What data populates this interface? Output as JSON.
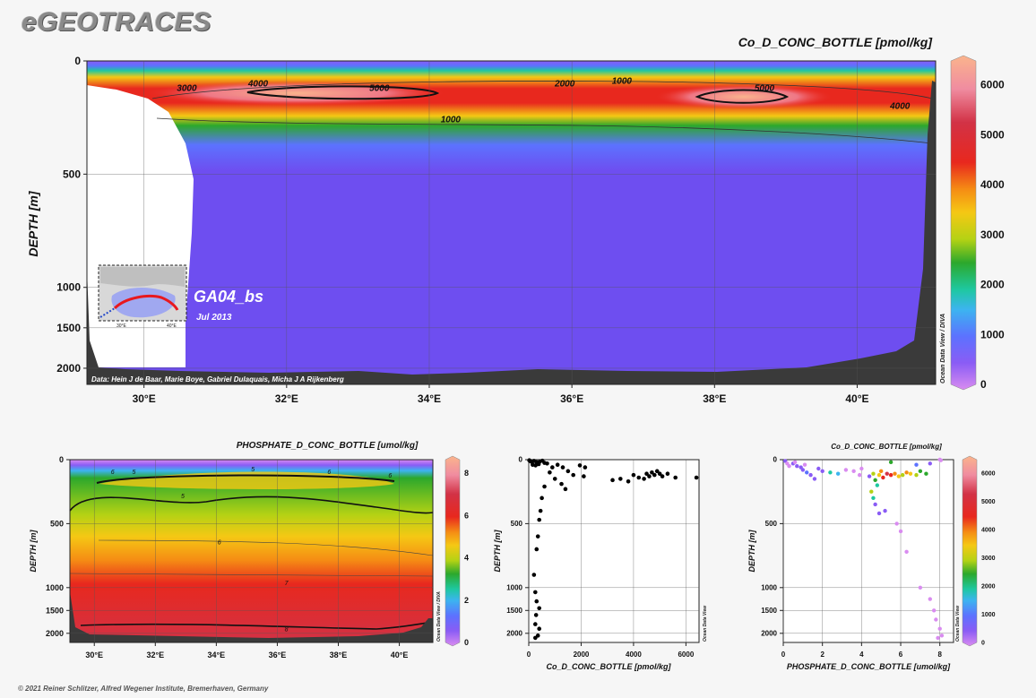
{
  "brand": "eGEOTRACES",
  "footer": "© 2021 Reiner Schlitzer, Alfred Wegener Institute, Bremerhaven, Germany",
  "colors": {
    "scale": [
      "#d98cf0",
      "#8a5cf5",
      "#5c72ff",
      "#3cb4f0",
      "#1ec8a0",
      "#2ca82c",
      "#b4d214",
      "#f5c814",
      "#f58c14",
      "#e8281e",
      "#d23246",
      "#f08ca0",
      "#fab48c"
    ],
    "ocean": "#6e4ef0",
    "bottom": "#3a3a3a"
  },
  "chart_data": [
    {
      "id": "main-section",
      "type": "heatmap",
      "title": "Co_D_CONC_BOTTLE [pmol/kg]",
      "ylabel": "DEPTH [m]",
      "x_ticks": [
        "30°E",
        "32°E",
        "34°E",
        "36°E",
        "38°E",
        "40°E"
      ],
      "x_tick_values": [
        30,
        32,
        34,
        36,
        38,
        40
      ],
      "xlim": [
        29.2,
        41.1
      ],
      "y_ticks": [
        "0",
        "500",
        "1000",
        "1500",
        "2000"
      ],
      "y_tick_values": [
        0,
        500,
        1000,
        1500,
        2000
      ],
      "ylim": [
        0,
        2200
      ],
      "colorbar_ticks": [
        "0",
        "1000",
        "2000",
        "3000",
        "4000",
        "5000",
        "6000"
      ],
      "colorbar_values": [
        0,
        1000,
        2000,
        3000,
        4000,
        5000,
        6000
      ],
      "contour_labels": [
        {
          "text": "3000",
          "x": 30.6,
          "depth": 120
        },
        {
          "text": "4000",
          "x": 31.6,
          "depth": 100
        },
        {
          "text": "5000",
          "x": 33.3,
          "depth": 120
        },
        {
          "text": "2000",
          "x": 35.9,
          "depth": 100
        },
        {
          "text": "1000",
          "x": 36.7,
          "depth": 90
        },
        {
          "text": "5000",
          "x": 38.7,
          "depth": 120
        },
        {
          "text": "4000",
          "x": 40.6,
          "depth": 200
        },
        {
          "text": "1000",
          "x": 34.3,
          "depth": 260
        }
      ],
      "cruise_label": "GA04_bs",
      "cruise_date": "Jul 2013",
      "inset_ticks": [
        "30°E",
        "40°E"
      ],
      "credits": "Data: Hein J de Baar, Marie Boye, Gabriel Dulaquais, Micha J A Rijkenberg",
      "side_label": "Ocean Data View / DIVA",
      "grid": true
    },
    {
      "id": "phosphate-section",
      "type": "heatmap",
      "title": "PHOSPHATE_D_CONC_BOTTLE [umol/kg]",
      "ylabel": "DEPTH [m]",
      "x_ticks": [
        "30°E",
        "32°E",
        "34°E",
        "36°E",
        "38°E",
        "40°E"
      ],
      "x_tick_values": [
        30,
        32,
        34,
        36,
        38,
        40
      ],
      "xlim": [
        29.2,
        41.1
      ],
      "y_ticks": [
        "0",
        "500",
        "1000",
        "1500",
        "2000"
      ],
      "y_tick_values": [
        0,
        500,
        1000,
        1500,
        2000
      ],
      "ylim": [
        0,
        2200
      ],
      "colorbar_ticks": [
        "0",
        "2",
        "4",
        "6",
        "8"
      ],
      "colorbar_values": [
        0,
        2,
        4,
        6,
        8
      ],
      "contour_labels": [
        {
          "text": "6",
          "x": 30.6,
          "depth": 90
        },
        {
          "text": "5",
          "x": 31.3,
          "depth": 90
        },
        {
          "text": "6",
          "x": 37.7,
          "depth": 90
        },
        {
          "text": "6",
          "x": 39.7,
          "depth": 120
        },
        {
          "text": "5",
          "x": 35.2,
          "depth": 70
        },
        {
          "text": "5",
          "x": 32.9,
          "depth": 280
        },
        {
          "text": "6",
          "x": 34.1,
          "depth": 640
        },
        {
          "text": "7",
          "x": 36.3,
          "depth": 960
        },
        {
          "text": "8",
          "x": 36.3,
          "depth": 1900
        }
      ],
      "side_label": "Ocean Data View / DIVA",
      "grid": true
    },
    {
      "id": "co-profile",
      "type": "scatter",
      "xlabel": "Co_D_CONC_BOTTLE [pmol/kg]",
      "ylabel": "DEPTH [m]",
      "x_ticks": [
        "0",
        "2000",
        "4000",
        "6000"
      ],
      "x_tick_values": [
        0,
        2000,
        4000,
        6000
      ],
      "xlim": [
        0,
        6500
      ],
      "y_ticks": [
        "0",
        "500",
        "1000",
        "1500",
        "2000"
      ],
      "y_tick_values": [
        0,
        500,
        1000,
        1500,
        2000
      ],
      "ylim": [
        0,
        2200
      ],
      "side_label": "Ocean Data View",
      "points": [
        [
          20,
          5
        ],
        [
          60,
          12
        ],
        [
          120,
          18
        ],
        [
          200,
          10
        ],
        [
          300,
          20
        ],
        [
          420,
          15
        ],
        [
          520,
          8
        ],
        [
          600,
          25
        ],
        [
          150,
          40
        ],
        [
          260,
          45
        ],
        [
          380,
          35
        ],
        [
          700,
          30
        ],
        [
          900,
          60
        ],
        [
          1100,
          40
        ],
        [
          1300,
          60
        ],
        [
          1500,
          90
        ],
        [
          1700,
          120
        ],
        [
          1950,
          45
        ],
        [
          2100,
          130
        ],
        [
          2150,
          60
        ],
        [
          800,
          100
        ],
        [
          1000,
          150
        ],
        [
          1250,
          190
        ],
        [
          1400,
          230
        ],
        [
          600,
          210
        ],
        [
          500,
          300
        ],
        [
          450,
          400
        ],
        [
          400,
          470
        ],
        [
          350,
          600
        ],
        [
          300,
          700
        ],
        [
          200,
          900
        ],
        [
          250,
          1100
        ],
        [
          300,
          1300
        ],
        [
          400,
          1450
        ],
        [
          280,
          1600
        ],
        [
          250,
          1800
        ],
        [
          400,
          1900
        ],
        [
          350,
          2050
        ],
        [
          250,
          2100
        ],
        [
          3200,
          160
        ],
        [
          3500,
          150
        ],
        [
          3800,
          170
        ],
        [
          4000,
          120
        ],
        [
          4200,
          140
        ],
        [
          4400,
          150
        ],
        [
          4500,
          110
        ],
        [
          4600,
          130
        ],
        [
          4700,
          100
        ],
        [
          4800,
          120
        ],
        [
          4900,
          90
        ],
        [
          5000,
          110
        ],
        [
          5100,
          130
        ],
        [
          5300,
          110
        ],
        [
          5600,
          140
        ],
        [
          6400,
          140
        ]
      ],
      "grid": true
    },
    {
      "id": "co-vs-phosphate",
      "type": "scatter",
      "title": "Co_D_CONC_BOTTLE [pmol/kg]",
      "xlabel": "PHOSPHATE_D_CONC_BOTTLE [umol/kg]",
      "ylabel": "DEPTH [m]",
      "x_ticks": [
        "0",
        "2",
        "4",
        "6",
        "8"
      ],
      "x_tick_values": [
        0,
        2,
        4,
        6,
        8
      ],
      "xlim": [
        0,
        8.7
      ],
      "y_ticks": [
        "0",
        "500",
        "1000",
        "1500",
        "2000"
      ],
      "y_tick_values": [
        0,
        500,
        1000,
        1500,
        2000
      ],
      "ylim": [
        0,
        2200
      ],
      "colorbar_ticks": [
        "0",
        "1000",
        "2000",
        "3000",
        "4000",
        "5000",
        "6000"
      ],
      "colorbar_values": [
        0,
        1000,
        2000,
        3000,
        4000,
        5000,
        6000
      ],
      "side_label": "Ocean Data View",
      "points": [
        [
          0.1,
          10,
          500
        ],
        [
          0.2,
          30,
          400
        ],
        [
          0.3,
          50,
          300
        ],
        [
          0.5,
          30,
          600
        ],
        [
          0.7,
          50,
          800
        ],
        [
          0.9,
          60,
          900
        ],
        [
          1.0,
          80,
          700
        ],
        [
          1.2,
          100,
          1000
        ],
        [
          1.4,
          120,
          900
        ],
        [
          1.6,
          150,
          800
        ],
        [
          1.8,
          70,
          600
        ],
        [
          2.0,
          90,
          500
        ],
        [
          1.1,
          40,
          400
        ],
        [
          0.6,
          20,
          300
        ],
        [
          2.4,
          100,
          2000
        ],
        [
          2.8,
          110,
          1500
        ],
        [
          3.2,
          80,
          300
        ],
        [
          3.6,
          90,
          200
        ],
        [
          4.0,
          70,
          300
        ],
        [
          3.9,
          120,
          400
        ],
        [
          4.4,
          130,
          600
        ],
        [
          4.6,
          110,
          3000
        ],
        [
          4.7,
          160,
          2500
        ],
        [
          4.8,
          200,
          2200
        ],
        [
          4.9,
          120,
          3800
        ],
        [
          5.0,
          90,
          4300
        ],
        [
          5.1,
          140,
          4800
        ],
        [
          5.3,
          110,
          5200
        ],
        [
          5.5,
          120,
          4500
        ],
        [
          5.7,
          110,
          4000
        ],
        [
          5.9,
          130,
          3500
        ],
        [
          6.1,
          120,
          3200
        ],
        [
          6.3,
          100,
          4200
        ],
        [
          6.5,
          110,
          3600
        ],
        [
          6.8,
          120,
          3000
        ],
        [
          7.0,
          90,
          2800
        ],
        [
          7.3,
          110,
          2500
        ],
        [
          4.5,
          250,
          3100
        ],
        [
          4.6,
          300,
          2000
        ],
        [
          4.7,
          350,
          900
        ],
        [
          4.9,
          420,
          600
        ],
        [
          5.2,
          400,
          500
        ],
        [
          5.8,
          500,
          400
        ],
        [
          6.0,
          560,
          300
        ],
        [
          6.3,
          720,
          300
        ],
        [
          7.0,
          1000,
          300
        ],
        [
          7.5,
          1250,
          300
        ],
        [
          7.7,
          1500,
          400
        ],
        [
          7.8,
          1700,
          350
        ],
        [
          8.0,
          1900,
          300
        ],
        [
          8.1,
          2050,
          350
        ],
        [
          7.9,
          2100,
          300
        ],
        [
          8.0,
          0,
          300
        ],
        [
          8.05,
          5,
          400
        ],
        [
          7.5,
          30,
          900
        ],
        [
          6.8,
          40,
          1200
        ],
        [
          5.5,
          20,
          2500
        ]
      ],
      "grid": true
    }
  ]
}
